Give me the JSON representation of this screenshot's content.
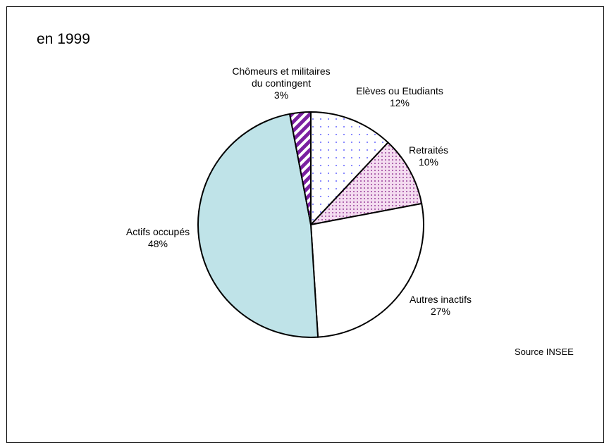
{
  "title": "en 1999",
  "source": "Source INSEE",
  "chart_data": {
    "type": "pie",
    "start_angle": "12 o'clock, clockwise",
    "slices": [
      {
        "name": "Elèves ou Etudiants",
        "label_lines": [
          "Elèves ou Etudiants",
          "12%"
        ],
        "value": 12,
        "fill": "dots-blue"
      },
      {
        "name": "Retraités",
        "label_lines": [
          "Retraités",
          "10%"
        ],
        "value": 10,
        "fill": "dots-pink"
      },
      {
        "name": "Autres inactifs",
        "label_lines": [
          "Autres inactifs",
          "27%"
        ],
        "value": 27,
        "fill": "white"
      },
      {
        "name": "Actifs occupés",
        "label_lines": [
          "Actifs occupés",
          "48%"
        ],
        "value": 48,
        "fill": "#bfe3e8"
      },
      {
        "name": "Chômeurs et militaires du contingent",
        "label_lines": [
          "Chômeurs et militaires",
          "du contingent",
          "3%"
        ],
        "value": 3,
        "fill": "stripes-purple"
      }
    ]
  }
}
